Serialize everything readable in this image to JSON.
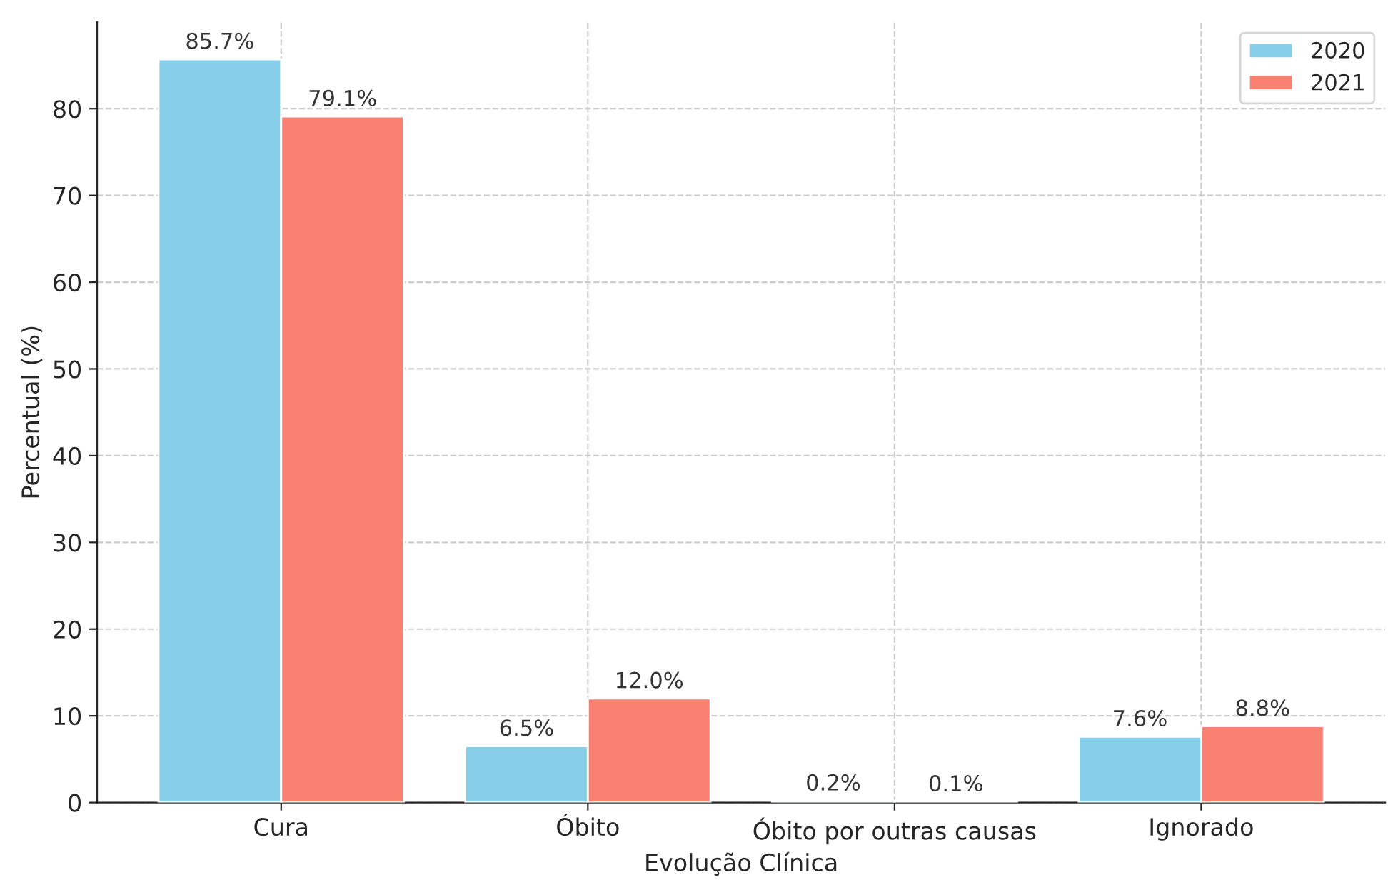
{
  "chart_data": {
    "type": "bar",
    "xlabel": "Evolução Clínica",
    "ylabel": "Percentual (%)",
    "categories": [
      "Cura",
      "Óbito",
      "Óbito por outras causas",
      "Ignorado"
    ],
    "series": [
      {
        "name": "2020",
        "color": "#87ceeb",
        "values": [
          85.7,
          6.5,
          0.2,
          7.6
        ],
        "value_labels": [
          "85.7%",
          "6.5%",
          "0.2%",
          "7.6%"
        ]
      },
      {
        "name": "2021",
        "color": "#fa8072",
        "values": [
          79.1,
          12.0,
          0.1,
          8.8
        ],
        "value_labels": [
          "79.1%",
          "12.0%",
          "0.1%",
          "8.8%"
        ]
      }
    ],
    "ylim": [
      0,
      90
    ],
    "yticks": [
      0,
      10,
      20,
      30,
      40,
      50,
      60,
      70,
      80
    ],
    "grid": true,
    "legend": "top right"
  }
}
